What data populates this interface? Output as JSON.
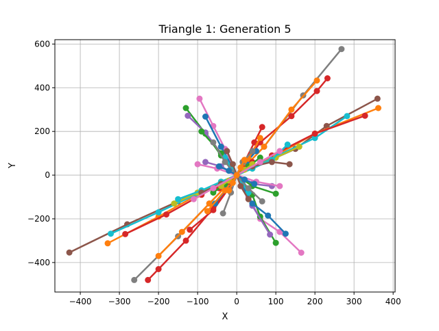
{
  "chart_data": {
    "type": "line",
    "title": "Triangle 1: Generation 5",
    "xlabel": "X",
    "ylabel": "Y",
    "xlim": [
      -465,
      405
    ],
    "ylim": [
      -535,
      620
    ],
    "xticks": [
      -400,
      -300,
      -200,
      -100,
      0,
      100,
      200,
      300,
      400
    ],
    "yticks": [
      -400,
      -200,
      0,
      200,
      400,
      600
    ],
    "grid": true,
    "legend": "none",
    "palette": [
      "#1f77b4",
      "#ff7f0e",
      "#2ca02c",
      "#d62728",
      "#9467bd",
      "#8c564b",
      "#e377c2",
      "#7f7f7f",
      "#bcbd22",
      "#17becf"
    ],
    "series": [
      {
        "color": "#7f7f7f",
        "x": [
          -262,
          -150,
          -70,
          0,
          70,
          170,
          268
        ],
        "y": [
          -480,
          -280,
          -130,
          0,
          130,
          365,
          577
        ]
      },
      {
        "color": "#d62728",
        "x": [
          -227,
          -200,
          -130,
          -60,
          0,
          60,
          140,
          205,
          232
        ],
        "y": [
          -480,
          -430,
          -300,
          -150,
          0,
          150,
          270,
          385,
          443
        ]
      },
      {
        "color": "#ff7f0e",
        "x": [
          -200,
          -140,
          -70,
          0,
          70,
          140,
          205
        ],
        "y": [
          -370,
          -260,
          -130,
          0,
          130,
          300,
          433
        ]
      },
      {
        "color": "#8c564b",
        "x": [
          -428,
          -280,
          -150,
          0,
          150,
          230,
          360
        ],
        "y": [
          -354,
          -225,
          -120,
          0,
          120,
          225,
          350
        ]
      },
      {
        "color": "#ff7f0e",
        "x": [
          -330,
          -200,
          -100,
          0,
          100,
          200,
          362
        ],
        "y": [
          -312,
          -190,
          -90,
          0,
          90,
          190,
          307
        ]
      },
      {
        "color": "#17becf",
        "x": [
          -322,
          -200,
          -100,
          0,
          100,
          200,
          282
        ],
        "y": [
          -268,
          -170,
          -85,
          0,
          85,
          170,
          270
        ]
      },
      {
        "color": "#d62728",
        "x": [
          -285,
          -180,
          -90,
          0,
          90,
          200,
          328
        ],
        "y": [
          -270,
          -180,
          -90,
          0,
          90,
          190,
          272
        ]
      },
      {
        "color": "#e377c2",
        "x": [
          -95,
          -60,
          -30,
          0,
          30,
          60,
          110,
          165
        ],
        "y": [
          350,
          225,
          120,
          0,
          -100,
          -200,
          -260,
          -355
        ]
      },
      {
        "color": "#2ca02c",
        "x": [
          -130,
          -80,
          -40,
          0,
          40,
          60,
          100
        ],
        "y": [
          307,
          190,
          90,
          0,
          -90,
          -190,
          -310
        ]
      },
      {
        "color": "#9467bd",
        "x": [
          -125,
          -80,
          -40,
          0,
          40,
          85
        ],
        "y": [
          272,
          195,
          100,
          0,
          -140,
          -272
        ]
      },
      {
        "color": "#1f77b4",
        "x": [
          -80,
          -40,
          0,
          40,
          80,
          125
        ],
        "y": [
          268,
          130,
          0,
          -130,
          -185,
          -268
        ]
      },
      {
        "color": "#d62728",
        "x": [
          65,
          45,
          20,
          0,
          -20,
          -60,
          -120
        ],
        "y": [
          220,
          150,
          60,
          0,
          -60,
          -160,
          -250
        ]
      },
      {
        "color": "#bcbd22",
        "x": [
          -160,
          -100,
          -40,
          0,
          40,
          100,
          160
        ],
        "y": [
          -130,
          -80,
          -30,
          0,
          30,
          80,
          130
        ]
      },
      {
        "color": "#17becf",
        "x": [
          -150,
          -90,
          -40,
          0,
          40,
          90,
          130
        ],
        "y": [
          -110,
          -70,
          -30,
          0,
          30,
          70,
          140
        ]
      },
      {
        "color": "#8c564b",
        "x": [
          -90,
          -40,
          0,
          40,
          90,
          135
        ],
        "y": [
          -80,
          -40,
          0,
          40,
          60,
          50
        ]
      },
      {
        "color": "#9467bd",
        "x": [
          -80,
          -40,
          0,
          40,
          90
        ],
        "y": [
          60,
          40,
          0,
          -40,
          -50
        ]
      },
      {
        "color": "#e377c2",
        "x": [
          -100,
          -50,
          0,
          50,
          110
        ],
        "y": [
          50,
          30,
          0,
          -30,
          -50
        ]
      },
      {
        "color": "#2ca02c",
        "x": [
          -90,
          -40,
          0,
          40,
          100
        ],
        "y": [
          200,
          100,
          0,
          -50,
          -85
        ]
      },
      {
        "color": "#1f77b4",
        "x": [
          -55,
          -25,
          0,
          25,
          50
        ],
        "y": [
          -130,
          -60,
          0,
          60,
          110
        ]
      },
      {
        "color": "#ff7f0e",
        "x": [
          -75,
          -30,
          0,
          30,
          60
        ],
        "y": [
          -165,
          -70,
          0,
          75,
          170
        ]
      },
      {
        "color": "#7f7f7f",
        "x": [
          -35,
          -15,
          0,
          15,
          40
        ],
        "y": [
          -175,
          -80,
          0,
          60,
          110
        ]
      },
      {
        "color": "#d62728",
        "x": [
          -45,
          -20,
          0,
          20,
          40
        ],
        "y": [
          -60,
          -30,
          0,
          30,
          60
        ]
      },
      {
        "color": "#17becf",
        "x": [
          -30,
          -15,
          0,
          15,
          30
        ],
        "y": [
          80,
          40,
          0,
          -40,
          -80
        ]
      },
      {
        "color": "#2ca02c",
        "x": [
          -60,
          -30,
          0,
          30,
          60
        ],
        "y": [
          -80,
          -40,
          0,
          40,
          80
        ]
      },
      {
        "color": "#7f7f7f",
        "x": [
          -60,
          -30,
          0,
          30,
          65
        ],
        "y": [
          150,
          60,
          0,
          -60,
          -120
        ]
      },
      {
        "color": "#bcbd22",
        "x": [
          -40,
          -20,
          0,
          20,
          40
        ],
        "y": [
          -50,
          -25,
          0,
          25,
          50
        ]
      },
      {
        "color": "#8c564b",
        "x": [
          -25,
          -10,
          0,
          10,
          30
        ],
        "y": [
          110,
          50,
          0,
          -50,
          -110
        ]
      },
      {
        "color": "#e377c2",
        "x": [
          -110,
          -60,
          0,
          60,
          110
        ],
        "y": [
          -110,
          -60,
          0,
          60,
          110
        ]
      },
      {
        "color": "#1f77b4",
        "x": [
          -45,
          -20,
          0,
          20,
          45
        ],
        "y": [
          40,
          20,
          0,
          -20,
          -40
        ]
      },
      {
        "color": "#ff7f0e",
        "x": [
          -20,
          -10,
          0,
          10,
          20
        ],
        "y": [
          -70,
          -35,
          0,
          35,
          70
        ]
      }
    ]
  }
}
